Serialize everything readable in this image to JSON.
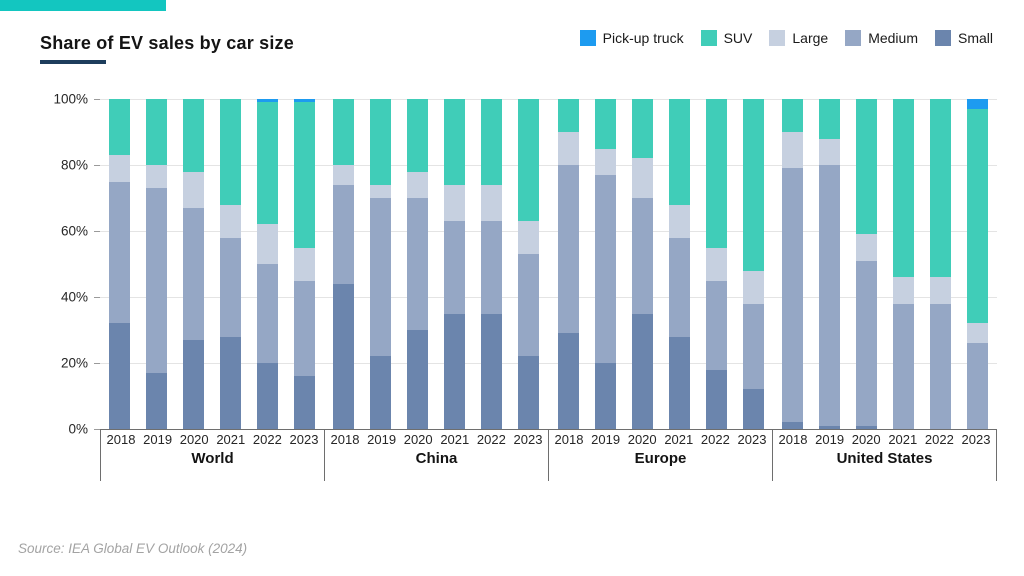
{
  "header": {
    "title": "Share of EV sales by car size"
  },
  "footer": {
    "source": "Source: IEA Global EV Outlook (2024)"
  },
  "colors": {
    "accent_bar": "#13c6c0",
    "title_underline": "#1d3d5c",
    "axis_line": "#6e6e6e",
    "gridline": "#e4e4e4"
  },
  "chart_data": {
    "type": "bar",
    "variant": "stacked-percentage",
    "title": "Share of EV sales by car size",
    "unit": "%",
    "ylim": [
      0,
      100
    ],
    "grid": "horizontal",
    "legend_position": "top-right",
    "ytick_values": [
      0,
      20,
      40,
      60,
      80,
      100
    ],
    "ytick_labels": [
      "0%",
      "20%",
      "40%",
      "60%",
      "80%",
      "100%"
    ],
    "years": [
      "2018",
      "2019",
      "2020",
      "2021",
      "2022",
      "2023"
    ],
    "legend_order": [
      "Pick-up truck",
      "SUV",
      "Large",
      "Medium",
      "Small"
    ],
    "stack_order_bottom_to_top": [
      "Small",
      "Medium",
      "Large",
      "SUV",
      "Pick-up truck"
    ],
    "series_colors": {
      "Pick-up truck": "#1d9bf0",
      "SUV": "#40cdb8",
      "Large": "#c6d0e0",
      "Medium": "#95a7c5",
      "Small": "#6b85ad"
    },
    "groups": [
      {
        "label": "World",
        "values": {
          "Small": [
            32,
            17,
            27,
            28,
            20,
            16
          ],
          "Medium": [
            43,
            56,
            40,
            30,
            30,
            29
          ],
          "Large": [
            8,
            7,
            11,
            10,
            12,
            10
          ],
          "SUV": [
            17,
            20,
            22,
            32,
            37,
            44
          ],
          "Pick-up truck": [
            0,
            0,
            0,
            0,
            1,
            1
          ]
        }
      },
      {
        "label": "China",
        "values": {
          "Small": [
            44,
            22,
            30,
            35,
            35,
            22
          ],
          "Medium": [
            30,
            48,
            40,
            28,
            28,
            31
          ],
          "Large": [
            6,
            4,
            8,
            11,
            11,
            10
          ],
          "SUV": [
            20,
            26,
            22,
            26,
            26,
            37
          ],
          "Pick-up truck": [
            0,
            0,
            0,
            0,
            0,
            0
          ]
        }
      },
      {
        "label": "Europe",
        "values": {
          "Small": [
            29,
            20,
            35,
            28,
            18,
            12
          ],
          "Medium": [
            51,
            57,
            35,
            30,
            27,
            26
          ],
          "Large": [
            10,
            8,
            12,
            10,
            10,
            10
          ],
          "SUV": [
            10,
            15,
            18,
            32,
            45,
            52
          ],
          "Pick-up truck": [
            0,
            0,
            0,
            0,
            0,
            0
          ]
        }
      },
      {
        "label": "United States",
        "values": {
          "Small": [
            2,
            1,
            1,
            0,
            0,
            0
          ],
          "Medium": [
            77,
            79,
            50,
            38,
            38,
            26
          ],
          "Large": [
            11,
            8,
            8,
            8,
            8,
            6
          ],
          "SUV": [
            10,
            12,
            41,
            54,
            54,
            65
          ],
          "Pick-up truck": [
            0,
            0,
            0,
            0,
            0,
            3
          ]
        }
      }
    ]
  }
}
